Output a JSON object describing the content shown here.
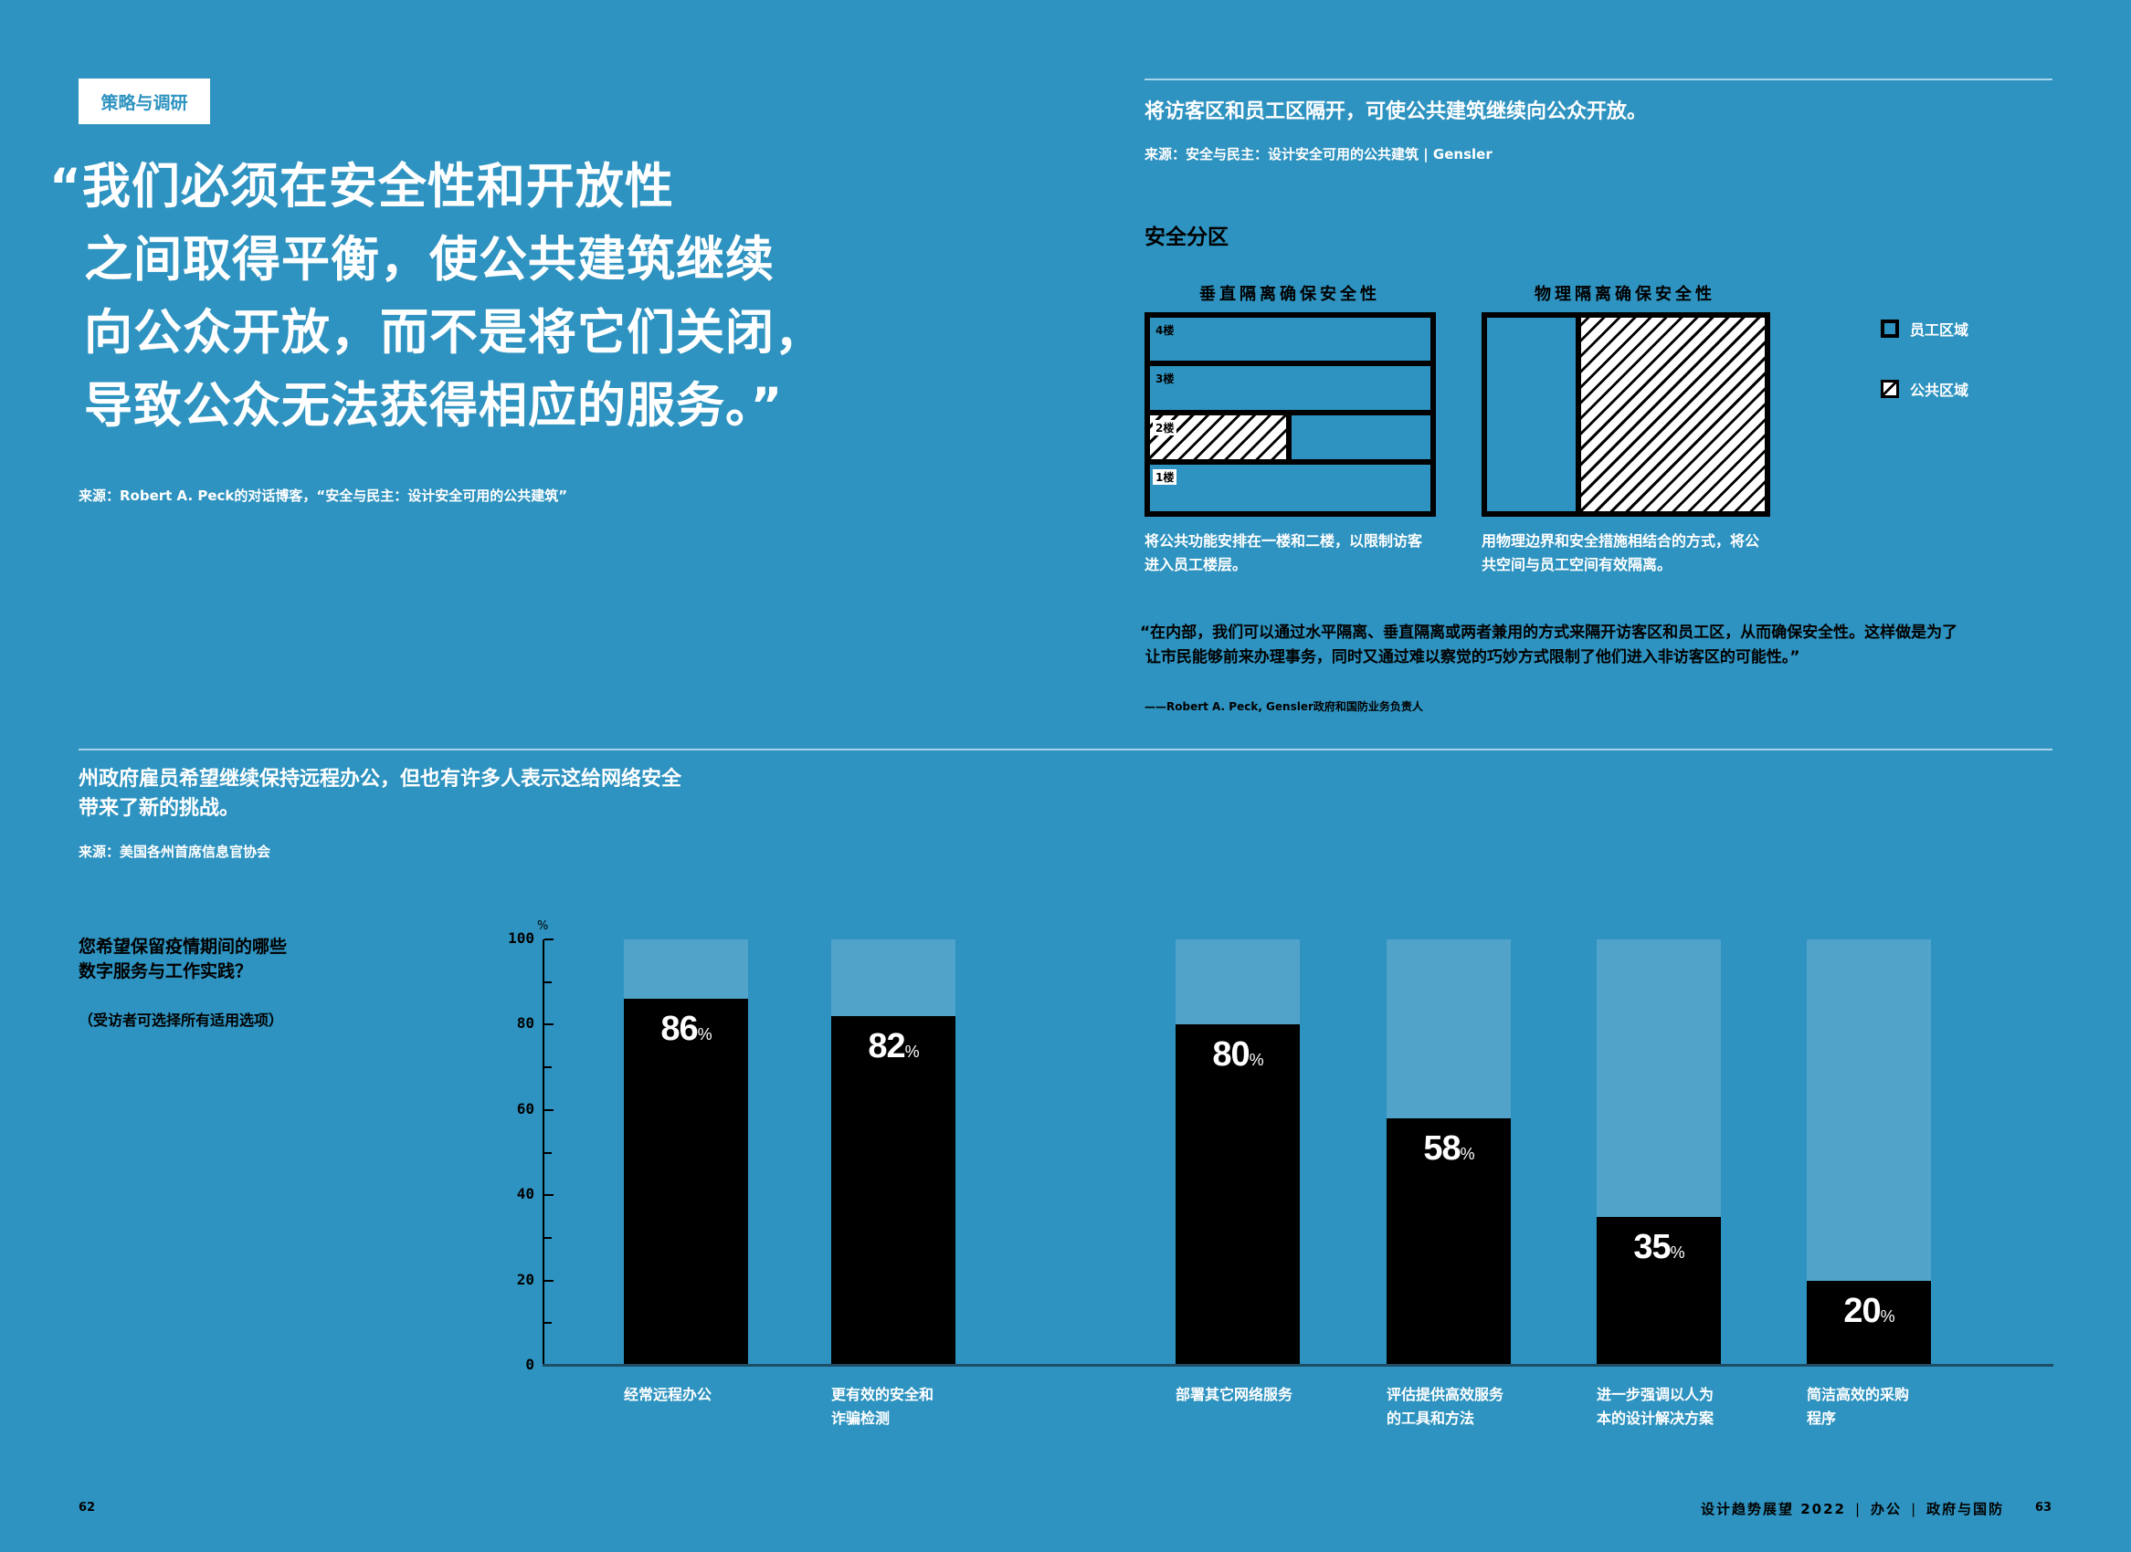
{
  "left_page": {
    "tag": "策略与调研",
    "quote_lines": [
      "“我们必须在安全性和开放性",
      "之间取得平衡，使公共建筑继续",
      "向公众开放，而不是将它们关闭，",
      "导致公众无法获得相应的服务。”"
    ],
    "quote_source": "来源：Robert A. Peck的对话博客，“安全与民主：设计安全可用的公共建筑”"
  },
  "right_top": {
    "title": "将访客区和员工区隔开，可使公共建筑继续向公众开放。",
    "source": "来源：安全与民主：设计安全可用的公共建筑 | Gensler",
    "zone_heading": "安全分区",
    "vertical_diagram": {
      "title": "垂直隔离确保安全性",
      "floors": [
        "4楼",
        "3楼",
        "2楼",
        "1楼"
      ],
      "caption_lines": [
        "将公共功能安排在一楼和二楼，以限制访客",
        "进入员工楼层。"
      ]
    },
    "physical_diagram": {
      "title": "物理隔离确保安全性",
      "caption_lines": [
        "用物理边界和安全措施相结合的方式，将公",
        "共空间与员工空间有效隔离。"
      ]
    },
    "legend": [
      {
        "label": "员工区域",
        "swatch": "staff-area-icon"
      },
      {
        "label": "公共区域",
        "swatch": "public-area-hatch-icon"
      }
    ],
    "inner_quote_lines": [
      "“在内部，我们可以通过水平隔离、垂直隔离或两者兼用的方式来隔开访客区和员工区，从而确保安全性。这样做是为了",
      " 让市民能够前来办理事务，同时又通过难以察觉的巧妙方式限制了他们进入非访客区的可能性。”"
    ],
    "inner_quote_attribution": "——Robert A. Peck, Gensler政府和国防业务负责人"
  },
  "survey_section": {
    "title_lines": [
      "州政府雇员希望继续保持远程办公，但也有许多人表示这给网络安全",
      "带来了新的挑战。"
    ],
    "source": "来源：美国各州首席信息官协会",
    "question_lines": [
      "您希望保留疫情期间的哪些",
      "数字服务与工作实践？"
    ],
    "question_note": "（受访者可选择所有适用选项）"
  },
  "chart_data": {
    "type": "bar",
    "title": "您希望保留疫情期间的哪些数字服务与工作实践？",
    "subtitle": "（受访者可选择所有适用选项）",
    "xlabel": "",
    "ylabel": "%",
    "ylim": [
      0,
      100
    ],
    "yticks": [
      0,
      20,
      40,
      60,
      80,
      100
    ],
    "minor_ticks": [
      10,
      30,
      50,
      70,
      90
    ],
    "grid": false,
    "legend": null,
    "categories": [
      "经常远程办公",
      "更有效的安全和诈骗检测",
      "部署其它网络服务",
      "评估提供高效服务的工具和方法",
      "进一步强调以人为本的设计解决方案",
      "简洁高效的采购程序"
    ],
    "category_label_lines": [
      [
        "经常远程办公"
      ],
      [
        "更有效的安全和",
        "诈骗检测"
      ],
      [
        "部署其它网络服务"
      ],
      [
        "评估提供高效服务",
        "的工具和方法"
      ],
      [
        "进一步强调以人为",
        "本的设计解决方案"
      ],
      [
        "简洁高效的采购",
        "程序"
      ]
    ],
    "values": [
      86,
      82,
      80,
      58,
      35,
      20
    ],
    "value_labels": [
      "86",
      "82",
      "80",
      "58",
      "35",
      "20"
    ],
    "value_unit": "%",
    "colors": {
      "bar": "#000000",
      "background_bar": "#51a3c9",
      "page": "#2e93c0"
    }
  },
  "footer": {
    "left_page_number": "62",
    "publication": "设计趋势展望 2022",
    "section": "办公",
    "subsection": "政府与国防",
    "right_page_number": "63"
  }
}
